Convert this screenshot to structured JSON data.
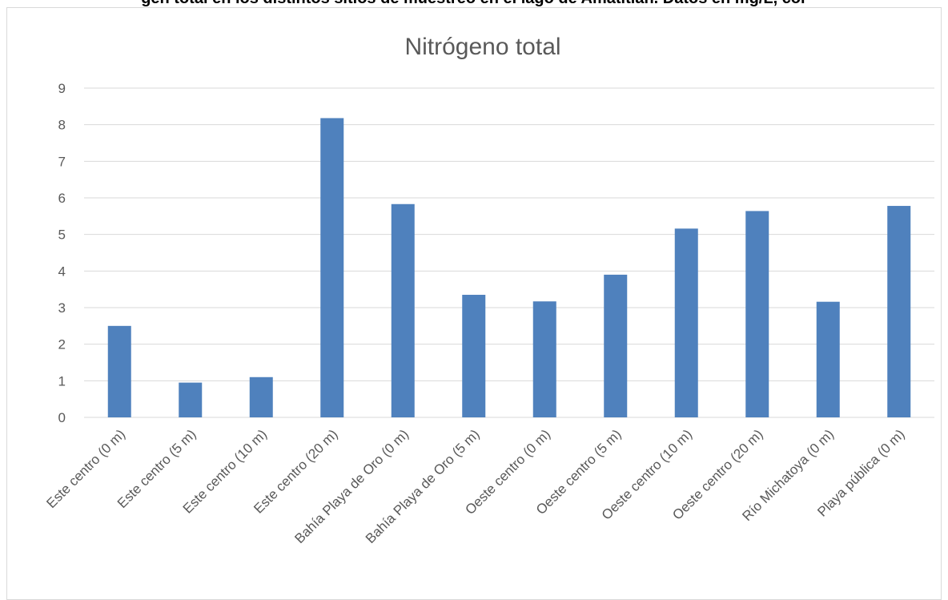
{
  "caption": "gen total en los distintos sitios de muestreo en el lago de Amatitlán. Datos en mg/L, cor",
  "chart_data": {
    "type": "bar",
    "title": "Nitrógeno total",
    "categories": [
      "Este centro (0 m)",
      "Este centro (5 m)",
      "Este centro (10 m)",
      "Este centro (20 m)",
      "Bahía Playa de Oro (0 m)",
      "Bahía Playa de Oro (5 m)",
      "Oeste centro (0 m)",
      "Oeste centro (5 m)",
      "Oeste centro (10 m)",
      "Oeste centro (20 m)",
      "Río Michatoya (0 m)",
      "Playa pública (0 m)"
    ],
    "values": [
      2.5,
      0.95,
      1.1,
      8.18,
      5.83,
      3.35,
      3.17,
      3.9,
      5.16,
      5.64,
      3.16,
      5.78
    ],
    "ylim": [
      0,
      9
    ],
    "yticks": [
      "0",
      "1",
      "2",
      "3",
      "4",
      "5",
      "6",
      "7",
      "8",
      "9"
    ],
    "xlabel": "",
    "ylabel": "",
    "grid": true,
    "legend": "none",
    "bar_color": "#4f81bd",
    "grid_color": "#d9d9d9"
  }
}
